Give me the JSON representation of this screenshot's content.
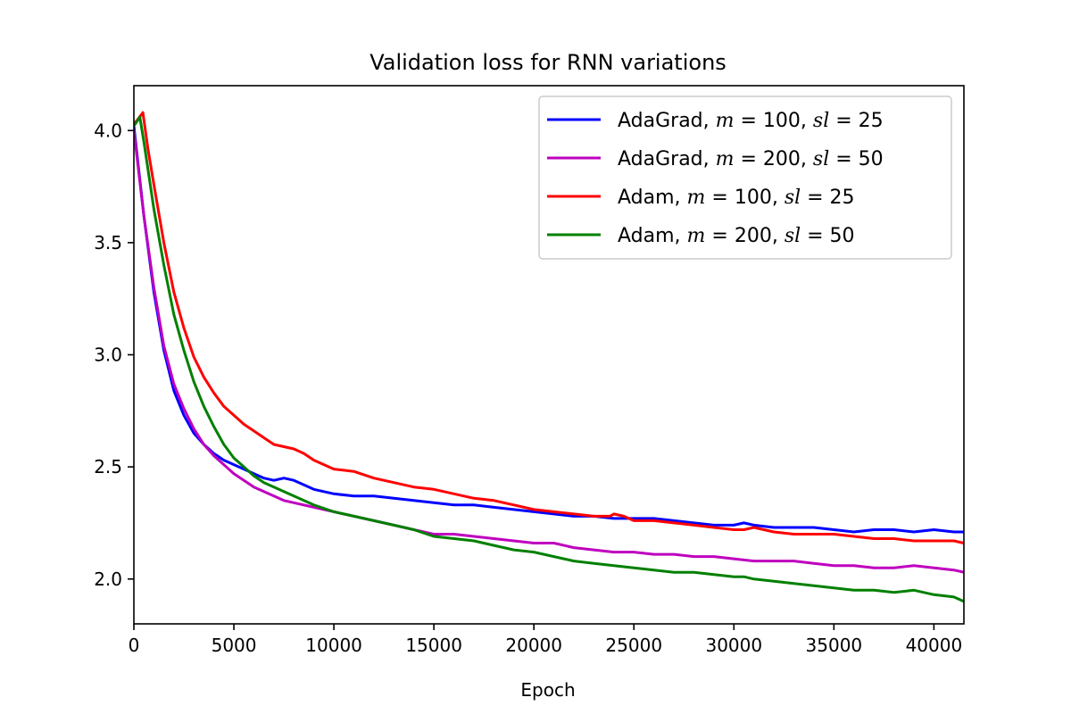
{
  "chart_data": {
    "type": "line",
    "title": "Validation loss for RNN variations",
    "xlabel": "Epoch",
    "ylabel": "",
    "xlim": [
      0,
      41500
    ],
    "ylim": [
      1.8,
      4.2
    ],
    "xticks": [
      0,
      5000,
      10000,
      15000,
      20000,
      25000,
      30000,
      35000,
      40000
    ],
    "xtick_labels": [
      "0",
      "5000",
      "10000",
      "15000",
      "20000",
      "25000",
      "30000",
      "35000",
      "40000"
    ],
    "yticks": [
      2.0,
      2.5,
      3.0,
      3.5,
      4.0
    ],
    "ytick_labels": [
      "2.0",
      "2.5",
      "3.0",
      "3.5",
      "4.0"
    ],
    "grid": false,
    "legend_position": "top-right",
    "series": [
      {
        "name": "AdaGrad, m = 100, sl = 25",
        "legend": {
          "prefix": "AdaGrad, ",
          "v1": "m",
          "e1": " = 100, ",
          "v2": "sl",
          "e2": " = 25"
        },
        "color": "#0000ff",
        "x": [
          0,
          500,
          1000,
          1500,
          2000,
          2500,
          3000,
          3500,
          4000,
          4500,
          5000,
          5500,
          6000,
          6500,
          7000,
          7500,
          8000,
          8500,
          9000,
          10000,
          11000,
          12000,
          13000,
          14000,
          15000,
          16000,
          17000,
          18000,
          19000,
          20000,
          21000,
          22000,
          23000,
          24000,
          25000,
          26000,
          27000,
          28000,
          29000,
          30000,
          30500,
          31000,
          32000,
          33000,
          34000,
          35000,
          36000,
          37000,
          38000,
          39000,
          40000,
          41000,
          41500
        ],
        "y": [
          4.02,
          3.62,
          3.28,
          3.02,
          2.84,
          2.73,
          2.65,
          2.6,
          2.56,
          2.53,
          2.51,
          2.49,
          2.47,
          2.45,
          2.44,
          2.45,
          2.44,
          2.42,
          2.4,
          2.38,
          2.37,
          2.37,
          2.36,
          2.35,
          2.34,
          2.33,
          2.33,
          2.32,
          2.31,
          2.3,
          2.29,
          2.28,
          2.28,
          2.27,
          2.27,
          2.27,
          2.26,
          2.25,
          2.24,
          2.24,
          2.25,
          2.24,
          2.23,
          2.23,
          2.23,
          2.22,
          2.21,
          2.22,
          2.22,
          2.21,
          2.22,
          2.21,
          2.21
        ]
      },
      {
        "name": "AdaGrad, m = 200, sl = 50",
        "legend": {
          "prefix": "AdaGrad, ",
          "v1": "m",
          "e1": " = 200, ",
          "v2": "sl",
          "e2": " = 50"
        },
        "color": "#bf00bf",
        "x": [
          0,
          500,
          1000,
          1500,
          2000,
          2500,
          3000,
          3500,
          4000,
          4500,
          5000,
          5500,
          6000,
          6500,
          7000,
          7500,
          8000,
          9000,
          10000,
          11000,
          12000,
          13000,
          14000,
          15000,
          16000,
          17000,
          18000,
          19000,
          20000,
          21000,
          22000,
          23000,
          24000,
          25000,
          26000,
          27000,
          28000,
          29000,
          30000,
          31000,
          32000,
          33000,
          34000,
          35000,
          36000,
          37000,
          38000,
          39000,
          40000,
          41000,
          41500
        ],
        "y": [
          4.0,
          3.62,
          3.3,
          3.04,
          2.87,
          2.76,
          2.67,
          2.6,
          2.55,
          2.51,
          2.47,
          2.44,
          2.41,
          2.39,
          2.37,
          2.35,
          2.34,
          2.32,
          2.3,
          2.28,
          2.26,
          2.24,
          2.22,
          2.2,
          2.2,
          2.19,
          2.18,
          2.17,
          2.16,
          2.16,
          2.14,
          2.13,
          2.12,
          2.12,
          2.11,
          2.11,
          2.1,
          2.1,
          2.09,
          2.08,
          2.08,
          2.08,
          2.07,
          2.06,
          2.06,
          2.05,
          2.05,
          2.06,
          2.05,
          2.04,
          2.03
        ]
      },
      {
        "name": "Adam, m = 100, sl = 25",
        "legend": {
          "prefix": "Adam, ",
          "v1": "m",
          "e1": " = 100, ",
          "v2": "sl",
          "e2": " = 25"
        },
        "color": "#ff0000",
        "x": [
          0,
          200,
          450,
          700,
          1000,
          1500,
          2000,
          2500,
          3000,
          3500,
          4000,
          4500,
          5000,
          5500,
          6000,
          6500,
          7000,
          7500,
          8000,
          8500,
          9000,
          9500,
          10000,
          11000,
          12000,
          13000,
          14000,
          15000,
          16000,
          17000,
          18000,
          19000,
          20000,
          21000,
          22000,
          23000,
          23800,
          24000,
          24500,
          25000,
          26000,
          27000,
          28000,
          29000,
          30000,
          30500,
          31000,
          32000,
          33000,
          34000,
          35000,
          36000,
          37000,
          38000,
          39000,
          40000,
          41000,
          41500
        ],
        "y": [
          4.03,
          4.05,
          4.08,
          3.92,
          3.76,
          3.5,
          3.28,
          3.12,
          2.99,
          2.9,
          2.83,
          2.77,
          2.73,
          2.69,
          2.66,
          2.63,
          2.6,
          2.59,
          2.58,
          2.56,
          2.53,
          2.51,
          2.49,
          2.48,
          2.45,
          2.43,
          2.41,
          2.4,
          2.38,
          2.36,
          2.35,
          2.33,
          2.31,
          2.3,
          2.29,
          2.28,
          2.28,
          2.29,
          2.28,
          2.26,
          2.26,
          2.25,
          2.24,
          2.23,
          2.22,
          2.22,
          2.23,
          2.21,
          2.2,
          2.2,
          2.2,
          2.19,
          2.18,
          2.18,
          2.17,
          2.17,
          2.17,
          2.16
        ]
      },
      {
        "name": "Adam, m = 200, sl = 50",
        "legend": {
          "prefix": "Adam, ",
          "v1": "m",
          "e1": " = 200, ",
          "v2": "sl",
          "e2": " = 50"
        },
        "color": "#008000",
        "x": [
          0,
          150,
          300,
          500,
          1000,
          1500,
          2000,
          2500,
          3000,
          3500,
          4000,
          4500,
          5000,
          5500,
          6000,
          6500,
          7000,
          7500,
          8000,
          8500,
          9000,
          10000,
          11000,
          12000,
          13000,
          14000,
          15000,
          16000,
          17000,
          18000,
          19000,
          20000,
          21000,
          22000,
          23000,
          24000,
          25000,
          26000,
          27000,
          28000,
          29000,
          30000,
          30500,
          31000,
          32000,
          33000,
          34000,
          35000,
          36000,
          37000,
          38000,
          39000,
          40000,
          41000,
          41500
        ],
        "y": [
          4.02,
          4.04,
          4.06,
          3.95,
          3.65,
          3.4,
          3.18,
          3.02,
          2.88,
          2.77,
          2.68,
          2.6,
          2.54,
          2.5,
          2.46,
          2.43,
          2.41,
          2.39,
          2.37,
          2.35,
          2.33,
          2.3,
          2.28,
          2.26,
          2.24,
          2.22,
          2.19,
          2.18,
          2.17,
          2.15,
          2.13,
          2.12,
          2.1,
          2.08,
          2.07,
          2.06,
          2.05,
          2.04,
          2.03,
          2.03,
          2.02,
          2.01,
          2.01,
          2.0,
          1.99,
          1.98,
          1.97,
          1.96,
          1.95,
          1.95,
          1.94,
          1.95,
          1.93,
          1.92,
          1.9
        ]
      }
    ]
  }
}
